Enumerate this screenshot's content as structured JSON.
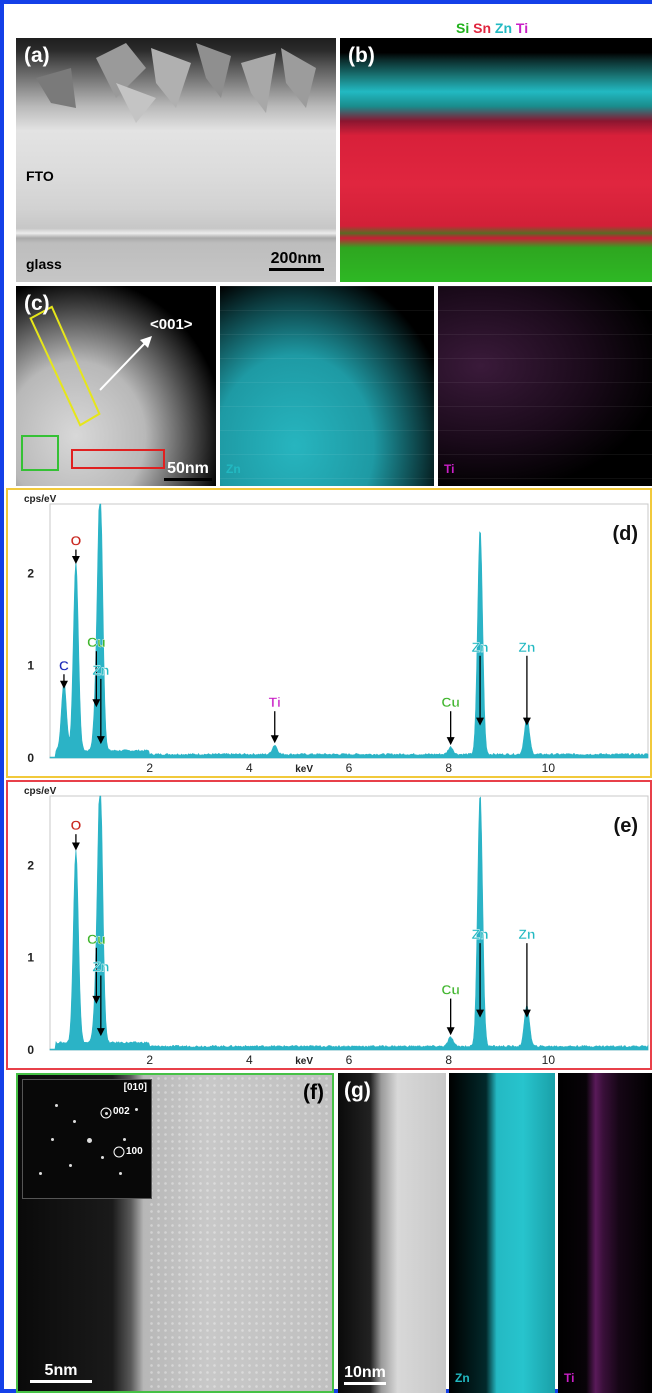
{
  "figure": {
    "colors": {
      "border": "#1440e8",
      "si": "#21b11c",
      "sn": "#e0263f",
      "zn": "#22b9c2",
      "ti": "#c91fc6",
      "o": "#c9261e",
      "c": "#1d2bb8",
      "cu": "#3fb52c",
      "spectrum_fill": "#2bb3c6",
      "frame_d": "#f1c93b",
      "frame_e": "#e8404a",
      "frame_f": "#46c146",
      "box_yellow": "#e6e61a",
      "box_green": "#35c135",
      "box_red": "#e02020"
    },
    "panel_a": {
      "label": "(a)",
      "fto": "FTO",
      "glass": "glass",
      "scalebar": "200nm"
    },
    "panel_b": {
      "label": "(b)",
      "legend": [
        {
          "text": "Si",
          "color": "#21b11c"
        },
        {
          "text": "Sn",
          "color": "#e0263f"
        },
        {
          "text": "Zn",
          "color": "#22b9c2"
        },
        {
          "text": "Ti",
          "color": "#c91fc6"
        }
      ]
    },
    "panel_c": {
      "label": "(c)",
      "direction": "<001>",
      "scalebar": "50nm",
      "map_zn": "Zn",
      "map_ti": "Ti"
    },
    "panel_f": {
      "label": "(f)",
      "zone_axis": "[010]",
      "spot_002": "002",
      "spot_100": "100",
      "scalebar": "5nm"
    },
    "panel_g": {
      "label": "(g)",
      "scalebar": "10nm",
      "map_zn": "Zn",
      "map_ti": "Ti"
    }
  },
  "chart_data": [
    {
      "type": "area",
      "panel": "(d)",
      "ylabel": "cps/eV",
      "xlabel": "keV",
      "xlim": [
        0,
        12
      ],
      "ylim": [
        0,
        2.75
      ],
      "x_ticks": [
        "2",
        "4",
        "6",
        "8",
        "10"
      ],
      "y_ticks": [
        "0",
        "1",
        "2"
      ],
      "peaks": [
        {
          "x": 0.28,
          "y": 0.75
        },
        {
          "x": 0.52,
          "y": 2.05
        },
        {
          "x": 0.93,
          "y": 0.5
        },
        {
          "x": 1.01,
          "y": 2.75
        },
        {
          "x": 4.51,
          "y": 0.1
        },
        {
          "x": 8.04,
          "y": 0.08
        },
        {
          "x": 8.63,
          "y": 2.45
        },
        {
          "x": 9.57,
          "y": 0.4
        }
      ],
      "annotations": [
        {
          "text": "C",
          "x": 0.28,
          "y": 0.95,
          "color": "#1d2bb8"
        },
        {
          "text": "O",
          "x": 0.52,
          "y": 2.3,
          "color": "#c9261e"
        },
        {
          "text": "Cu",
          "x": 0.93,
          "y": 1.2,
          "color": "#3fb52c"
        },
        {
          "text": "Zn",
          "x": 1.02,
          "y": 0.9,
          "color": "#22b9c2"
        },
        {
          "text": "Ti",
          "x": 4.51,
          "y": 0.55,
          "color": "#c91fc6"
        },
        {
          "text": "Cu",
          "x": 8.04,
          "y": 0.55,
          "color": "#3fb52c"
        },
        {
          "text": "Zn",
          "x": 8.63,
          "y": 1.15,
          "color": "#22b9c2"
        },
        {
          "text": "Zn",
          "x": 9.57,
          "y": 1.15,
          "color": "#22b9c2"
        }
      ]
    },
    {
      "type": "area",
      "panel": "(e)",
      "ylabel": "cps/eV",
      "xlabel": "keV",
      "xlim": [
        0,
        12
      ],
      "ylim": [
        0,
        2.75
      ],
      "x_ticks": [
        "2",
        "4",
        "6",
        "8",
        "10"
      ],
      "y_ticks": [
        "0",
        "1",
        "2"
      ],
      "peaks": [
        {
          "x": 0.52,
          "y": 2.1
        },
        {
          "x": 0.93,
          "y": 0.45
        },
        {
          "x": 1.01,
          "y": 2.75
        },
        {
          "x": 8.04,
          "y": 0.1
        },
        {
          "x": 8.63,
          "y": 2.75
        },
        {
          "x": 9.57,
          "y": 0.45
        }
      ],
      "annotations": [
        {
          "text": "O",
          "x": 0.52,
          "y": 2.38,
          "color": "#c9261e"
        },
        {
          "text": "Cu",
          "x": 0.93,
          "y": 1.15,
          "color": "#3fb52c"
        },
        {
          "text": "Zn",
          "x": 1.02,
          "y": 0.85,
          "color": "#22b9c2"
        },
        {
          "text": "Cu",
          "x": 8.04,
          "y": 0.6,
          "color": "#3fb52c"
        },
        {
          "text": "Zn",
          "x": 8.63,
          "y": 1.2,
          "color": "#22b9c2"
        },
        {
          "text": "Zn",
          "x": 9.57,
          "y": 1.2,
          "color": "#22b9c2"
        }
      ]
    }
  ]
}
